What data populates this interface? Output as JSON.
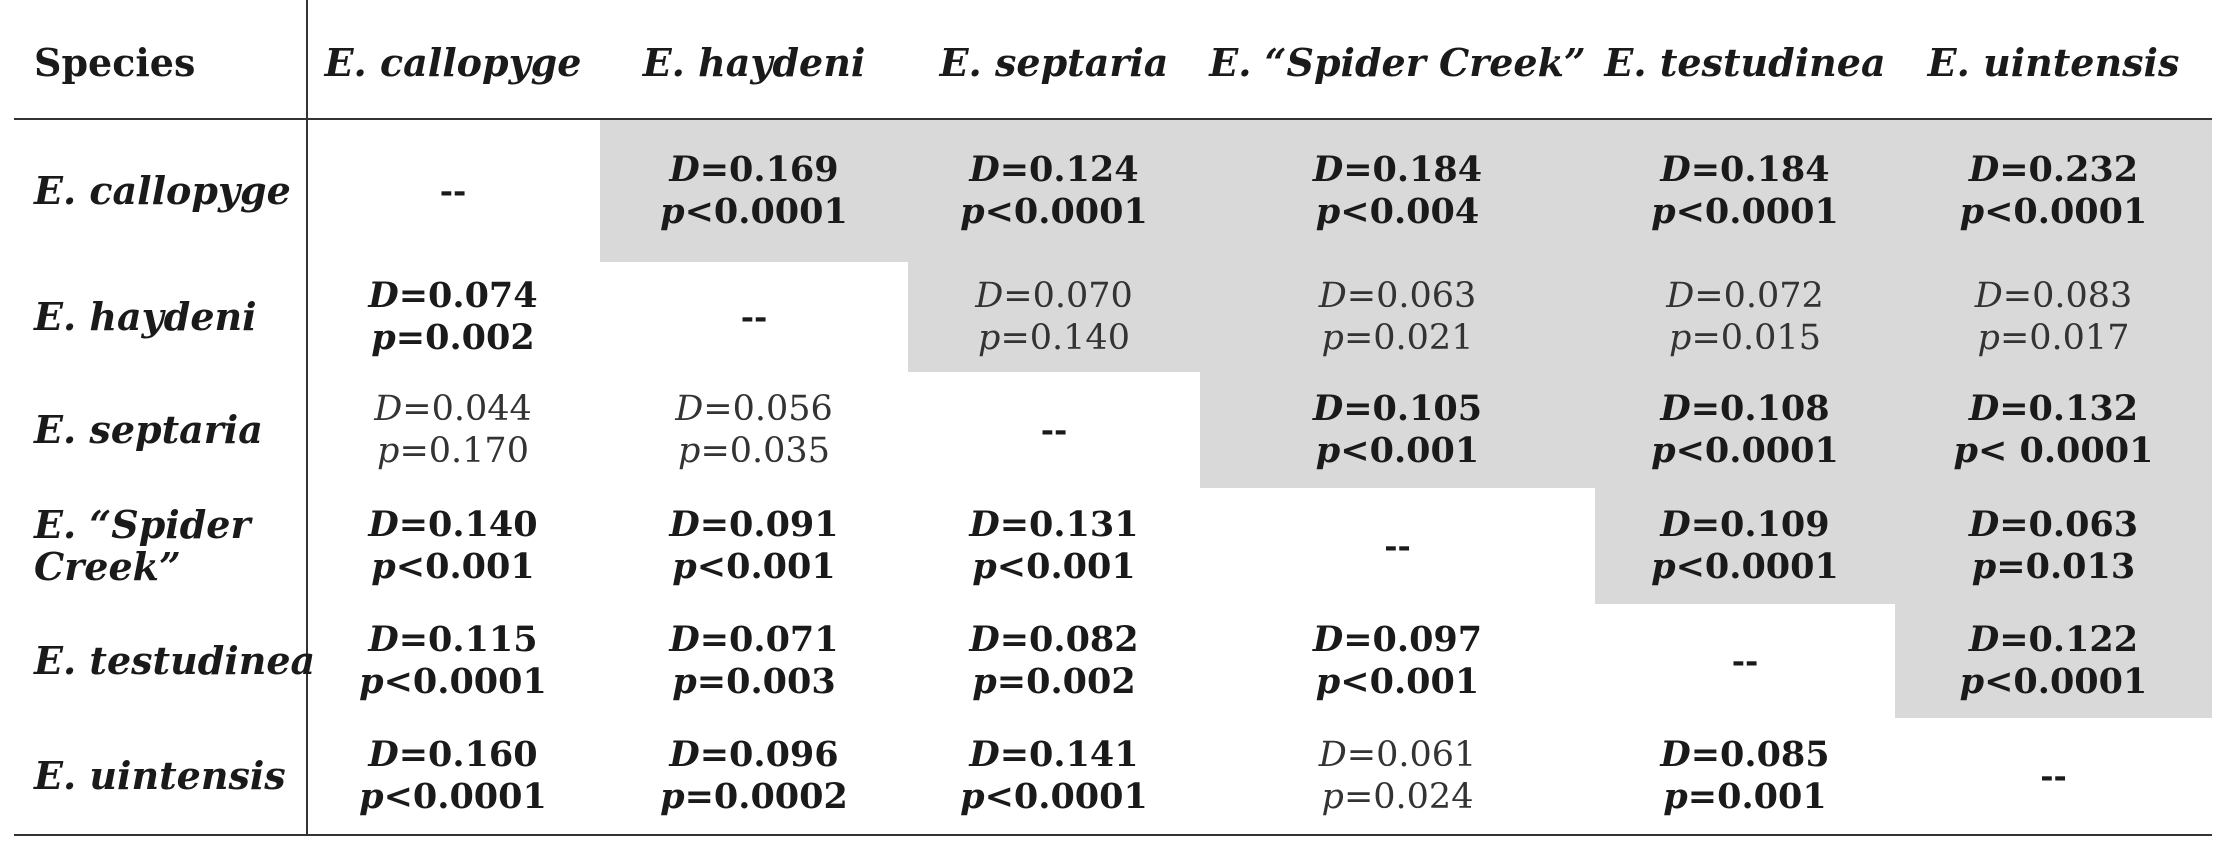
{
  "table": {
    "header": [
      "Species",
      "E. callopyge",
      "E. haydeni",
      "E. septaria",
      "E. “Spider Creek”",
      "E. testudinea",
      "E. uintensis"
    ],
    "rows": [
      {
        "label": "E. callopyge",
        "cells": [
          {
            "diag": true,
            "text": "--"
          },
          {
            "d": "0.169",
            "p": "<0.0001",
            "bold": true
          },
          {
            "d": "0.124",
            "p": "<0.0001",
            "bold": true
          },
          {
            "d": "0.184",
            "p": "<0.004",
            "bold": true
          },
          {
            "d": "0.184",
            "p": "<0.0001",
            "bold": true
          },
          {
            "d": "0.232",
            "p": "<0.0001",
            "bold": true
          }
        ]
      },
      {
        "label": "E. haydeni",
        "cells": [
          {
            "d": "0.074",
            "p": "=0.002",
            "bold": true
          },
          {
            "diag": true,
            "text": "--"
          },
          {
            "d": "0.070",
            "p": "=0.140",
            "bold": false
          },
          {
            "d": "0.063",
            "p": "=0.021",
            "bold": false
          },
          {
            "d": "0.072",
            "p": "=0.015",
            "bold": false
          },
          {
            "d": "0.083",
            "p": "=0.017",
            "bold": false
          }
        ]
      },
      {
        "label": "E. septaria",
        "cells": [
          {
            "d": "0.044",
            "p": "=0.170",
            "bold": false
          },
          {
            "d": "0.056",
            "p": "=0.035",
            "bold": false
          },
          {
            "diag": true,
            "text": "--"
          },
          {
            "d": "0.105",
            "p": "<0.001",
            "bold": true
          },
          {
            "d": "0.108",
            "p": "<0.0001",
            "bold": true
          },
          {
            "d": "0.132",
            "p": "< 0.0001",
            "bold": true
          }
        ]
      },
      {
        "label": "E. “Spider\nCreek”",
        "cells": [
          {
            "d": "0.140",
            "p": "<0.001",
            "bold": true
          },
          {
            "d": "0.091",
            "p": "<0.001",
            "bold": true
          },
          {
            "d": "0.131",
            "p": "<0.001",
            "bold": true
          },
          {
            "diag": true,
            "text": "--"
          },
          {
            "d": "0.109",
            "p": "<0.0001",
            "bold": true
          },
          {
            "d": "0.063",
            "p": "=0.013",
            "bold": true
          }
        ]
      },
      {
        "label": "E. testudinea",
        "cells": [
          {
            "d": "0.115",
            "p": "<0.0001",
            "bold": true
          },
          {
            "d": "0.071",
            "p": "=0.003",
            "bold": true
          },
          {
            "d": "0.082",
            "p": "=0.002",
            "bold": true
          },
          {
            "d": "0.097",
            "p": "<0.001",
            "bold": true
          },
          {
            "diag": true,
            "text": "--"
          },
          {
            "d": "0.122",
            "p": "<0.0001",
            "bold": true
          }
        ]
      },
      {
        "label": "E. uintensis",
        "cells": [
          {
            "d": "0.160",
            "p": "<0.0001",
            "bold": true
          },
          {
            "d": "0.096",
            "p": "=0.0002",
            "bold": true
          },
          {
            "d": "0.141",
            "p": "<0.0001",
            "bold": true
          },
          {
            "d": "0.061",
            "p": "=0.024",
            "bold": false
          },
          {
            "d": "0.085",
            "p": "=0.001",
            "bold": true
          },
          {
            "diag": true,
            "text": "--"
          }
        ]
      }
    ],
    "shade_color": "#d9d9d9"
  }
}
